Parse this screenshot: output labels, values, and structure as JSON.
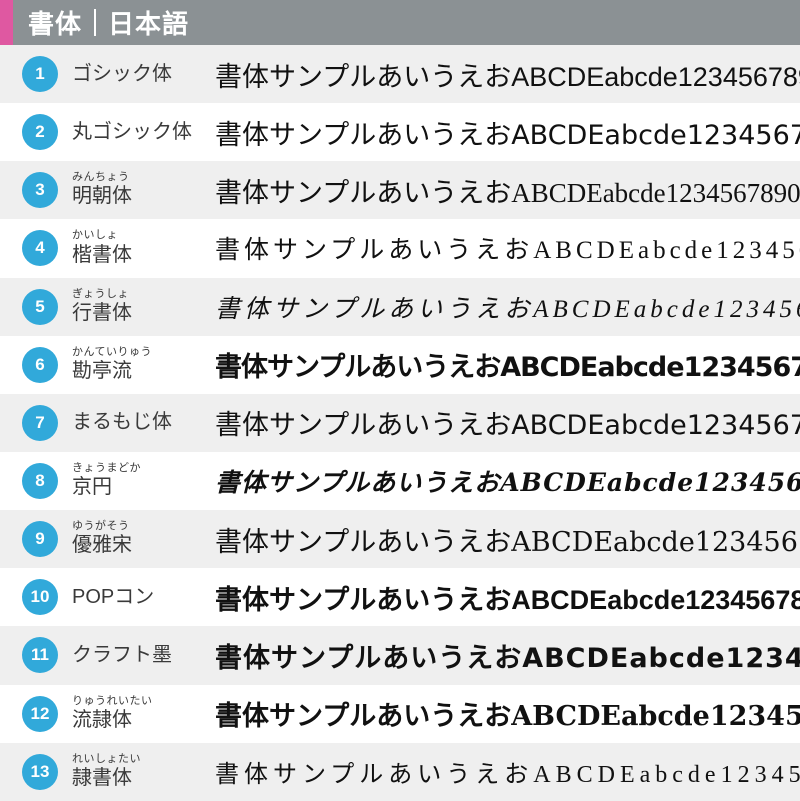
{
  "header": {
    "title_left": "書体",
    "title_right": "日本語"
  },
  "sample_text": "書体サンプルあいうえおABCDEabcde1234567890",
  "colors": {
    "accent_pink": "#df58a1",
    "header_gray": "#8b9194",
    "row_alt_gray": "#efefef",
    "circle_blue": "#31a9da",
    "label_text": "#3a3a3a",
    "sample_text": "#111111"
  },
  "rows": [
    {
      "number": "1",
      "furigana": "",
      "name": "ゴシック体"
    },
    {
      "number": "2",
      "furigana": "",
      "name": "丸ゴシック体"
    },
    {
      "number": "3",
      "furigana": "みんちょう",
      "name": "明朝体"
    },
    {
      "number": "4",
      "furigana": "かいしょ",
      "name": "楷書体"
    },
    {
      "number": "5",
      "furigana": "ぎょうしょ",
      "name": "行書体"
    },
    {
      "number": "6",
      "furigana": "かんていりゅう",
      "name": "勘亭流"
    },
    {
      "number": "7",
      "furigana": "",
      "name": "まるもじ体"
    },
    {
      "number": "8",
      "furigana": "きょうまどか",
      "name": "京円"
    },
    {
      "number": "9",
      "furigana": "ゆうがそう",
      "name": "優雅宋"
    },
    {
      "number": "10",
      "furigana": "",
      "name": "POPコン"
    },
    {
      "number": "11",
      "furigana": "",
      "name": "クラフト墨"
    },
    {
      "number": "12",
      "furigana": "りゅうれいたい",
      "name": "流隷体"
    },
    {
      "number": "13",
      "furigana": "れいしょたい",
      "name": "隷書体"
    }
  ]
}
